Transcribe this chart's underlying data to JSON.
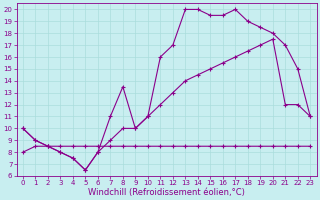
{
  "xlabel": "Windchill (Refroidissement éolien,°C)",
  "bg_color": "#c8eef0",
  "line_color": "#8b008b",
  "grid_color": "#aadddd",
  "xlim": [
    -0.5,
    23.5
  ],
  "ylim": [
    6,
    20.5
  ],
  "xticks": [
    0,
    1,
    2,
    3,
    4,
    5,
    6,
    7,
    8,
    9,
    10,
    11,
    12,
    13,
    14,
    15,
    16,
    17,
    18,
    19,
    20,
    21,
    22,
    23
  ],
  "yticks": [
    6,
    7,
    8,
    9,
    10,
    11,
    12,
    13,
    14,
    15,
    16,
    17,
    18,
    19,
    20
  ],
  "line_upper_x": [
    0,
    1,
    2,
    3,
    4,
    5,
    6,
    7,
    8,
    9,
    10,
    11,
    12,
    13,
    14,
    15,
    16,
    17,
    18,
    19,
    20,
    21,
    22,
    23
  ],
  "line_upper_y": [
    10,
    9,
    8.5,
    8,
    7.5,
    6.5,
    8,
    11,
    13.5,
    10,
    11,
    16,
    17,
    20,
    20,
    19.5,
    19.5,
    20,
    19,
    18.5,
    18,
    17,
    15,
    11
  ],
  "line_mid_x": [
    0,
    1,
    2,
    3,
    4,
    5,
    6,
    7,
    8,
    9,
    10,
    11,
    12,
    13,
    14,
    15,
    16,
    17,
    18,
    19,
    20,
    21,
    22,
    23
  ],
  "line_mid_y": [
    10,
    9,
    8.5,
    8,
    7.5,
    6.5,
    8,
    9,
    10,
    10,
    11,
    12,
    13,
    14,
    14.5,
    15,
    15.5,
    16,
    16.5,
    17,
    17.5,
    12,
    12,
    11
  ],
  "line_lower_x": [
    0,
    1,
    2,
    3,
    4,
    5,
    6,
    7,
    8,
    9,
    10,
    11,
    12,
    13,
    14,
    15,
    16,
    17,
    18,
    19,
    20,
    21,
    22,
    23
  ],
  "line_lower_y": [
    8,
    8.5,
    8.5,
    8.5,
    8.5,
    8.5,
    8.5,
    8.5,
    8.5,
    8.5,
    8.5,
    8.5,
    8.5,
    8.5,
    8.5,
    8.5,
    8.5,
    8.5,
    8.5,
    8.5,
    8.5,
    8.5,
    8.5,
    8.5
  ],
  "marker": "+",
  "markersize": 3,
  "markeredgewidth": 0.8,
  "linewidth": 0.8,
  "tick_fontsize": 5.0,
  "xlabel_fontsize": 6.0
}
